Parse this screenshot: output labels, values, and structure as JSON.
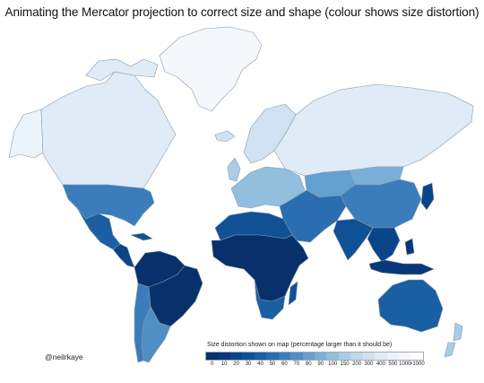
{
  "title": "Animating the Mercator projection to correct size and shape (colour shows size distortion)",
  "credit": "@neilrkaye",
  "legend": {
    "title": "Size distortion shown on map (percentage larger than it should be)",
    "labels": [
      "0",
      "10",
      "20",
      "30",
      "40",
      "50",
      "60",
      "70",
      "80",
      "90",
      "100",
      "150",
      "200",
      "300",
      "400",
      "500",
      "1000",
      ">1000"
    ],
    "colors": [
      "#08306b",
      "#08387a",
      "#0b4589",
      "#105196",
      "#1a5ea3",
      "#2a6db1",
      "#3b7dbc",
      "#4f8fc6",
      "#63a0cf",
      "#7aafd7",
      "#92bfde",
      "#a9cde5",
      "#bed9ec",
      "#d0e2f2",
      "#dfebf7",
      "#ebf3fb",
      "#f4f8fd",
      "#ffffff"
    ]
  },
  "regions": [
    {
      "name": "Greenland",
      "color": "#f4f8fd"
    },
    {
      "name": "Canada",
      "color": "#dfebf7"
    },
    {
      "name": "Alaska",
      "color": "#ebf3fb"
    },
    {
      "name": "USA",
      "color": "#3b7dbc"
    },
    {
      "name": "Mexico",
      "color": "#1a5ea3"
    },
    {
      "name": "Central America",
      "color": "#0b4589"
    },
    {
      "name": "Caribbean",
      "color": "#105196"
    },
    {
      "name": "Brazil",
      "color": "#08306b"
    },
    {
      "name": "Northern South America",
      "color": "#08306b"
    },
    {
      "name": "Argentina",
      "color": "#4f8fc6"
    },
    {
      "name": "Chile",
      "color": "#3b7dbc"
    },
    {
      "name": "Russia",
      "color": "#dfebf7"
    },
    {
      "name": "Scandinavia",
      "color": "#d0e2f2"
    },
    {
      "name": "Europe",
      "color": "#92bfde"
    },
    {
      "name": "Kazakhstan",
      "color": "#63a0cf"
    },
    {
      "name": "China",
      "color": "#3b7dbc"
    },
    {
      "name": "Mongolia",
      "color": "#7aafd7"
    },
    {
      "name": "Middle East",
      "color": "#2a6db1"
    },
    {
      "name": "India",
      "color": "#105196"
    },
    {
      "name": "Southeast Asia",
      "color": "#0b4589"
    },
    {
      "name": "Japan",
      "color": "#63a0cf"
    },
    {
      "name": "North Africa",
      "color": "#105196"
    },
    {
      "name": "Sub-Saharan Africa",
      "color": "#08306b"
    },
    {
      "name": "Southern Africa",
      "color": "#1a5ea3"
    },
    {
      "name": "Madagascar",
      "color": "#105196"
    },
    {
      "name": "Indonesia",
      "color": "#08387a"
    },
    {
      "name": "Australia",
      "color": "#1a5ea3"
    },
    {
      "name": "New Zealand",
      "color": "#a9cde5"
    },
    {
      "name": "Iceland",
      "color": "#d0e2f2"
    },
    {
      "name": "UK",
      "color": "#a9cde5"
    }
  ]
}
